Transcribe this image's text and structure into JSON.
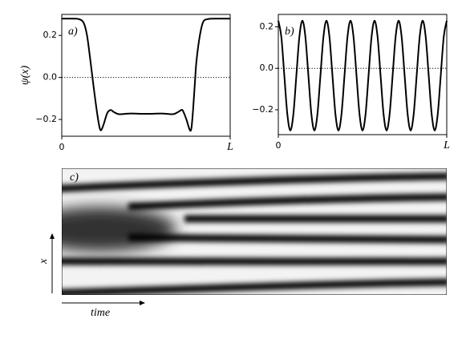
{
  "chart_data": [
    {
      "type": "line",
      "label": "a)",
      "ylabel": "ψ(x)",
      "color": "#000000",
      "hline": 0,
      "x": [
        0,
        0.05,
        0.1,
        0.13,
        0.15,
        0.17,
        0.19,
        0.21,
        0.225,
        0.235,
        0.25,
        0.27,
        0.29,
        0.31,
        0.34,
        0.4,
        0.5,
        0.6,
        0.66,
        0.69,
        0.71,
        0.72,
        0.74,
        0.76,
        0.77,
        0.78,
        0.79,
        0.8,
        0.82,
        0.84,
        0.87,
        0.92,
        1
      ],
      "values": [
        0.28,
        0.28,
        0.278,
        0.26,
        0.2,
        0.08,
        -0.05,
        -0.17,
        -0.24,
        -0.25,
        -0.22,
        -0.17,
        -0.155,
        -0.165,
        -0.175,
        -0.172,
        -0.173,
        -0.172,
        -0.175,
        -0.165,
        -0.155,
        -0.16,
        -0.2,
        -0.25,
        -0.24,
        -0.15,
        -0.03,
        0.08,
        0.2,
        0.265,
        0.278,
        0.28,
        0.28
      ],
      "xlim": [
        0,
        1
      ],
      "xticks": [
        0,
        {
          "value": 1,
          "label": "L"
        }
      ],
      "ylim": [
        -0.28,
        0.3
      ],
      "yticks": [
        0.2,
        {
          "value": 0,
          "label": "0.0"
        },
        {
          "value": -0.2,
          "label": "−0.2"
        }
      ]
    },
    {
      "type": "line",
      "label": "b)",
      "color": "#000000",
      "hline": 0,
      "x": [
        0,
        0.0179,
        0.0357,
        0.0536,
        0.0714,
        0.0893,
        0.1071,
        0.125,
        0.1429,
        0.1607,
        0.1786,
        0.1964,
        0.2143,
        0.2321,
        0.25,
        0.2679,
        0.2857,
        0.3036,
        0.3214,
        0.3393,
        0.3571,
        0.375,
        0.3929,
        0.4107,
        0.4286,
        0.4464,
        0.4643,
        0.4821,
        0.5,
        0.5179,
        0.5357,
        0.5536,
        0.5714,
        0.5893,
        0.6071,
        0.625,
        0.6429,
        0.6607,
        0.6786,
        0.6964,
        0.7143,
        0.7321,
        0.75,
        0.7679,
        0.7857,
        0.8036,
        0.8214,
        0.8393,
        0.8571,
        0.875,
        0.8929,
        0.9107,
        0.9286,
        0.9464,
        0.9643,
        0.9821,
        1
      ],
      "values": [
        0.23,
        0.152,
        -0.035,
        -0.222,
        -0.3,
        -0.222,
        -0.035,
        0.152,
        0.23,
        0.152,
        -0.035,
        -0.222,
        -0.3,
        -0.222,
        -0.035,
        0.152,
        0.23,
        0.152,
        -0.035,
        -0.222,
        -0.3,
        -0.222,
        -0.035,
        0.152,
        0.23,
        0.152,
        -0.035,
        -0.222,
        -0.3,
        -0.222,
        -0.035,
        0.152,
        0.23,
        0.152,
        -0.035,
        -0.222,
        -0.3,
        -0.222,
        -0.035,
        0.152,
        0.23,
        0.152,
        -0.035,
        -0.222,
        -0.3,
        -0.222,
        -0.035,
        0.152,
        0.23,
        0.152,
        -0.035,
        -0.222,
        -0.3,
        -0.222,
        -0.035,
        0.152,
        0.23
      ],
      "xlim": [
        0,
        1
      ],
      "xticks": [
        0,
        {
          "value": 1,
          "label": "L"
        }
      ],
      "ylim": [
        -0.32,
        0.26
      ],
      "yticks": [
        0.2,
        {
          "value": 0,
          "label": "0.0"
        },
        {
          "value": -0.2,
          "label": "−0.2"
        }
      ]
    },
    {
      "type": "heatmap",
      "label": "c)",
      "xlabel": "time",
      "ylabel": "x"
    }
  ]
}
